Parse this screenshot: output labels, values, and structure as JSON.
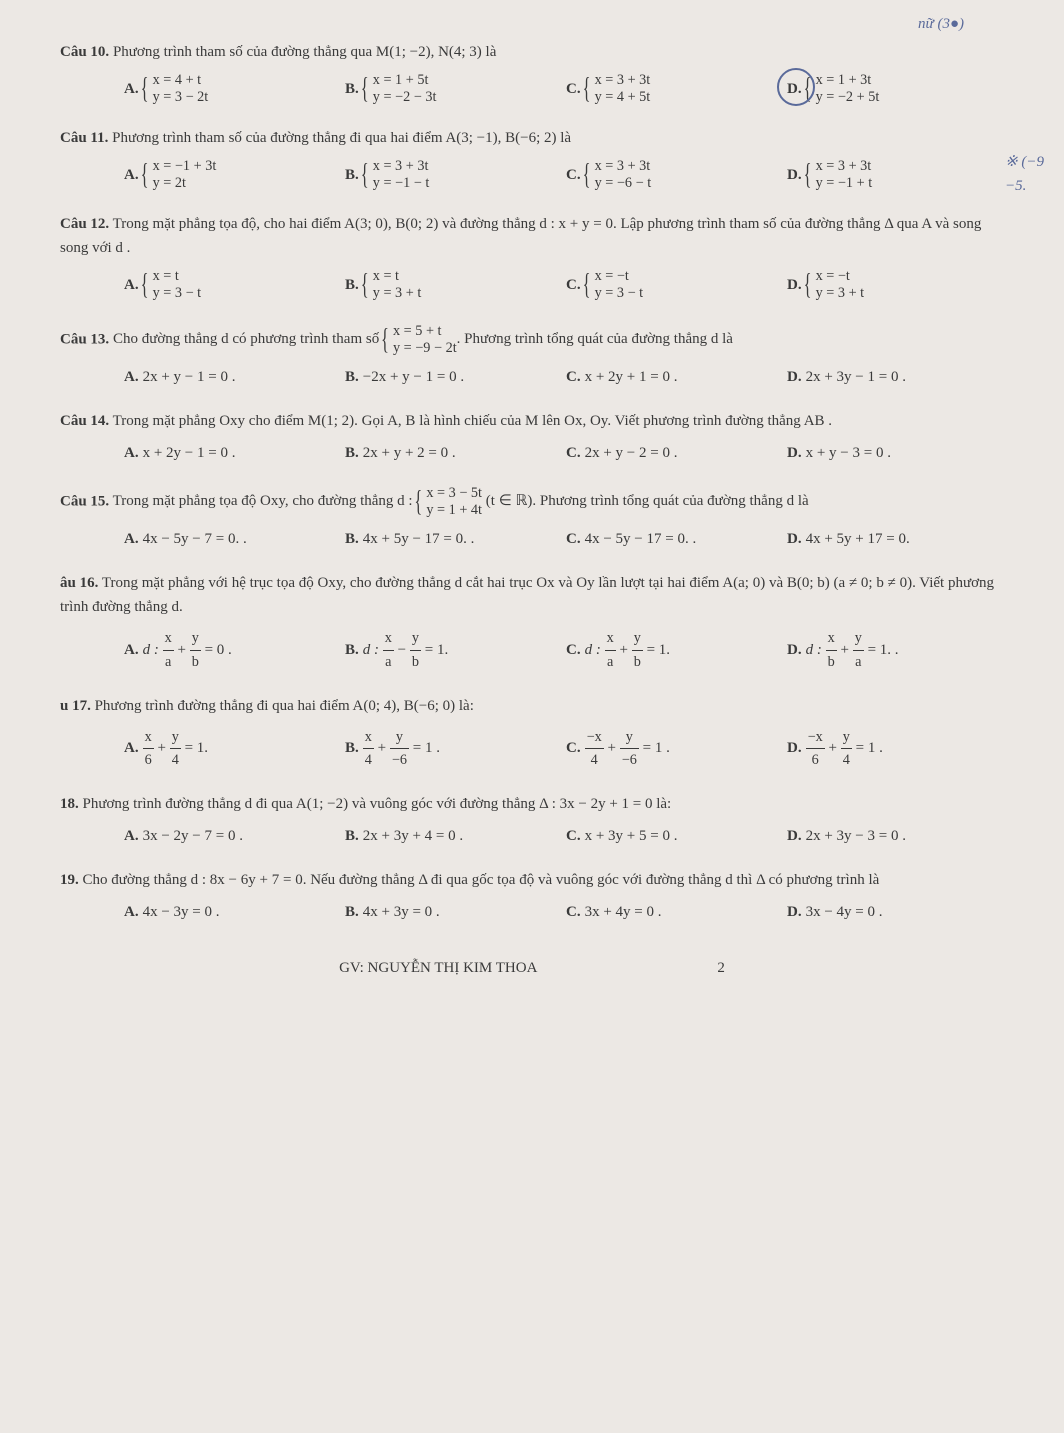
{
  "handnotes": {
    "top": "nữ (3●)",
    "right": "※ (−9\n−5."
  },
  "questions": [
    {
      "id": "q10",
      "label": "Câu 10.",
      "text": "Phương trình tham số của đường thẳng qua M(1; −2), N(4; 3) là",
      "choices": [
        {
          "L": "A.",
          "sys": [
            "x = 4 + t",
            "y = 3 − 2t"
          ]
        },
        {
          "L": "B.",
          "sys": [
            "x = 1 + 5t",
            "y = −2 − 3t"
          ]
        },
        {
          "L": "C.",
          "sys": [
            "x = 3 + 3t",
            "y = 4 + 5t"
          ]
        },
        {
          "L": "D.",
          "sys": [
            "x = 1 + 3t",
            "y = −2 + 5t"
          ],
          "circled": true
        }
      ]
    },
    {
      "id": "q11",
      "label": "Câu 11.",
      "text": "Phương trình tham số của đường thẳng đi qua hai điểm A(3; −1), B(−6; 2) là",
      "choices": [
        {
          "L": "A.",
          "sys": [
            "x = −1 + 3t",
            "y = 2t"
          ]
        },
        {
          "L": "B.",
          "sys": [
            "x = 3 + 3t",
            "y = −1 − t"
          ]
        },
        {
          "L": "C.",
          "sys": [
            "x = 3 + 3t",
            "y = −6 − t"
          ]
        },
        {
          "L": "D.",
          "sys": [
            "x = 3 + 3t",
            "y = −1 + t"
          ]
        }
      ]
    },
    {
      "id": "q12",
      "label": "Câu 12.",
      "text": "Trong mặt phẳng tọa độ, cho hai điểm A(3; 0), B(0; 2) và đường thẳng d : x + y = 0. Lập phương trình tham số của đường thẳng Δ qua A và song song với d .",
      "choices": [
        {
          "L": "A.",
          "sys": [
            "x = t",
            "y = 3 − t"
          ]
        },
        {
          "L": "B.",
          "sys": [
            "x = t",
            "y = 3 + t"
          ]
        },
        {
          "L": "C.",
          "sys": [
            "x = −t",
            "y = 3 − t"
          ]
        },
        {
          "L": "D.",
          "sys": [
            "x = −t",
            "y = 3 + t"
          ]
        }
      ]
    },
    {
      "id": "q13",
      "label": "Câu 13.",
      "text_pre": "Cho đường thẳng d có phương trình tham số ",
      "text_sys": [
        "x = 5 + t",
        "y = −9 − 2t"
      ],
      "text_post": ". Phương trình tổng quát của đường thẳng d là",
      "choices": [
        {
          "L": "A.",
          "t": "2x + y − 1 = 0 ."
        },
        {
          "L": "B.",
          "t": "−2x + y − 1 = 0 ."
        },
        {
          "L": "C.",
          "t": "x + 2y + 1 = 0 ."
        },
        {
          "L": "D.",
          "t": "2x + 3y − 1 = 0 ."
        }
      ]
    },
    {
      "id": "q14",
      "label": "Câu 14.",
      "text": "Trong mặt phẳng Oxy cho điểm M(1; 2). Gọi A, B là hình chiếu của M lên Ox, Oy. Viết phương trình đường thẳng AB .",
      "choices": [
        {
          "L": "A.",
          "t": "x + 2y − 1 = 0 ."
        },
        {
          "L": "B.",
          "t": "2x + y + 2 = 0 ."
        },
        {
          "L": "C.",
          "t": "2x + y − 2 = 0 ."
        },
        {
          "L": "D.",
          "t": "x + y − 3 = 0 ."
        }
      ]
    },
    {
      "id": "q15",
      "label": "Câu 15.",
      "text_pre": "Trong mặt phẳng tọa độ Oxy, cho đường thẳng d : ",
      "text_sys": [
        "x = 3 − 5t",
        "y = 1 + 4t"
      ],
      "text_post": " (t ∈ ℝ). Phương trình tổng quát của đường thẳng d là",
      "choices": [
        {
          "L": "A.",
          "t": "4x − 5y − 7 = 0. ."
        },
        {
          "L": "B.",
          "t": "4x + 5y − 17 = 0. ."
        },
        {
          "L": "C.",
          "t": "4x − 5y − 17 = 0. ."
        },
        {
          "L": "D.",
          "t": "4x + 5y + 17 = 0."
        }
      ]
    },
    {
      "id": "q16",
      "label": "âu 16.",
      "text": "Trong mặt phẳng với hệ trục tọa độ Oxy, cho đường thẳng d cắt hai trục Ox và Oy lần lượt tại hai điểm A(a; 0) và B(0; b) (a ≠ 0; b ≠ 0). Viết phương trình đường thẳng d.",
      "choices": [
        {
          "L": "A.",
          "frac": [
            "x",
            "a",
            "+",
            "y",
            "b",
            "= 0 ."
          ],
          "pref": "d :"
        },
        {
          "L": "B.",
          "frac": [
            "x",
            "a",
            "−",
            "y",
            "b",
            "= 1."
          ],
          "pref": "d :"
        },
        {
          "L": "C.",
          "frac": [
            "x",
            "a",
            "+",
            "y",
            "b",
            "= 1."
          ],
          "pref": "d :"
        },
        {
          "L": "D.",
          "frac": [
            "x",
            "b",
            "+",
            "y",
            "a",
            "= 1. ."
          ],
          "pref": "d :"
        }
      ]
    },
    {
      "id": "q17",
      "label": "u 17.",
      "text": "Phương trình đường thẳng đi qua hai điểm A(0; 4), B(−6; 0) là:",
      "choices": [
        {
          "L": "A.",
          "frac": [
            "x",
            "6",
            "+",
            "y",
            "4",
            "= 1."
          ]
        },
        {
          "L": "B.",
          "frac": [
            "x",
            "4",
            "+",
            "y",
            "−6",
            "= 1 ."
          ]
        },
        {
          "L": "C.",
          "frac": [
            "−x",
            "4",
            "+",
            "y",
            "−6",
            "= 1 ."
          ]
        },
        {
          "L": "D.",
          "frac": [
            "−x",
            "6",
            "+",
            "y",
            "4",
            "= 1 ."
          ]
        }
      ]
    },
    {
      "id": "q18",
      "label": "18.",
      "text": "Phương trình đường thẳng d đi qua A(1; −2) và vuông góc với đường thẳng Δ : 3x − 2y + 1 = 0 là:",
      "choices": [
        {
          "L": "A.",
          "t": "3x − 2y − 7 = 0 ."
        },
        {
          "L": "B.",
          "t": "2x + 3y + 4 = 0 ."
        },
        {
          "L": "C.",
          "t": "x + 3y + 5 = 0 ."
        },
        {
          "L": "D.",
          "t": "2x + 3y − 3 = 0 ."
        }
      ]
    },
    {
      "id": "q19",
      "label": "19.",
      "text": "Cho đường thẳng d : 8x − 6y + 7 = 0. Nếu đường thẳng Δ đi qua gốc tọa độ và vuông góc với đường thẳng d thì Δ có phương trình là",
      "choices": [
        {
          "L": "A.",
          "t": "4x − 3y = 0 ."
        },
        {
          "L": "B.",
          "t": "4x + 3y = 0 ."
        },
        {
          "L": "C.",
          "t": "3x + 4y = 0 ."
        },
        {
          "L": "D.",
          "t": "3x − 4y = 0 ."
        }
      ]
    }
  ],
  "footer": {
    "author": "GV: NGUYỄN THỊ KIM THOA",
    "page": "2"
  }
}
